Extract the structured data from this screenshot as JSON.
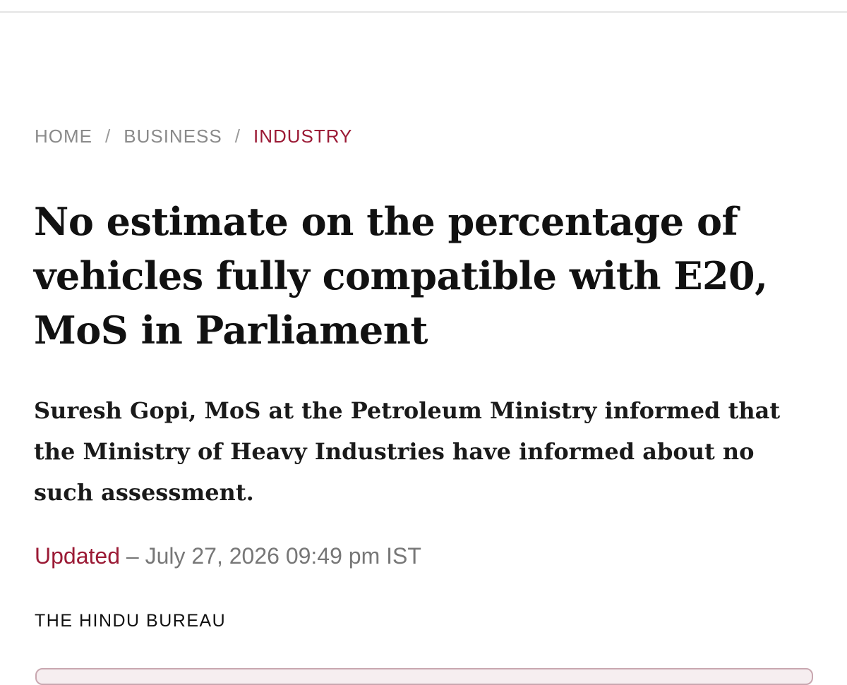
{
  "breadcrumb": {
    "items": [
      "HOME",
      "BUSINESS",
      "INDUSTRY"
    ],
    "separator": "/"
  },
  "headline": "No estimate on the percentage of vehicles fully compatible with E20, MoS in Parliament",
  "summary": "Suresh Gopi, MoS at the Petroleum Ministry informed that the Ministry of Heavy Industries have informed about no such assessment.",
  "updated": {
    "label": "Updated",
    "dash": "–",
    "datetime": "July 27, 2026 09:49 pm IST"
  },
  "byline": "THE HINDU BUREAU"
}
